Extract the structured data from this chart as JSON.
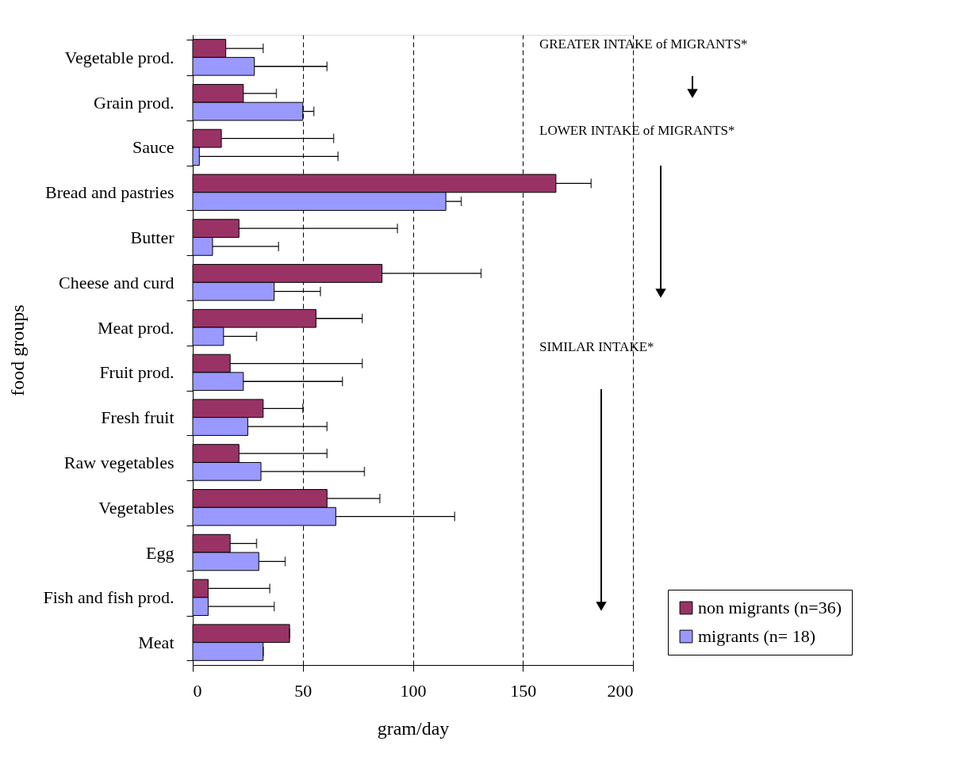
{
  "chart_data": {
    "type": "bar",
    "orientation": "horizontal",
    "categories": [
      "Vegetable prod.",
      "Grain prod.",
      "Sauce",
      "Bread and pastries",
      "Butter",
      "Cheese and curd",
      "Meat prod.",
      "Fruit prod.",
      "Fresh fruit",
      "Raw vegetables",
      "Vegetables",
      "Egg",
      "Fish and fish prod.",
      "Meat"
    ],
    "xlabel": "gram/day",
    "ylabel": "food groups",
    "xlim": [
      0,
      200
    ],
    "xticks": [
      0,
      50,
      100,
      150,
      200
    ],
    "grid": "x",
    "legend": "bottom right",
    "series": [
      {
        "name": "non migrants (n=36)",
        "color": "#993366",
        "values": [
          15,
          23,
          13,
          165,
          21,
          86,
          56,
          17,
          32,
          21,
          61,
          17,
          7,
          44
        ],
        "errors": [
          [
            15,
            32
          ],
          [
            23,
            38
          ],
          [
            13,
            64
          ],
          [
            165,
            181
          ],
          [
            21,
            93
          ],
          [
            86,
            131
          ],
          [
            56,
            77
          ],
          [
            17,
            77
          ],
          [
            32,
            50
          ],
          [
            21,
            61
          ],
          [
            61,
            85
          ],
          [
            17,
            29
          ],
          [
            7,
            35
          ],
          [
            44,
            44
          ]
        ]
      },
      {
        "name": "migrants (n= 18)",
        "color": "#9999ff",
        "values": [
          28,
          50,
          3,
          115,
          9,
          37,
          14,
          23,
          25,
          31,
          65,
          30,
          7,
          32
        ],
        "errors": [
          [
            28,
            61
          ],
          [
            50,
            55
          ],
          [
            3,
            66
          ],
          [
            115,
            122
          ],
          [
            9,
            39
          ],
          [
            37,
            58
          ],
          [
            14,
            29
          ],
          [
            23,
            68
          ],
          [
            25,
            61
          ],
          [
            31,
            78
          ],
          [
            65,
            119
          ],
          [
            30,
            42
          ],
          [
            7,
            37
          ],
          [
            32,
            32
          ]
        ]
      }
    ],
    "annotations": [
      "GREATER INTAKE of MIGRANTS*",
      "LOWER INTAKE of MIGRANTS*",
      "SIMILAR INTAKE*"
    ]
  }
}
